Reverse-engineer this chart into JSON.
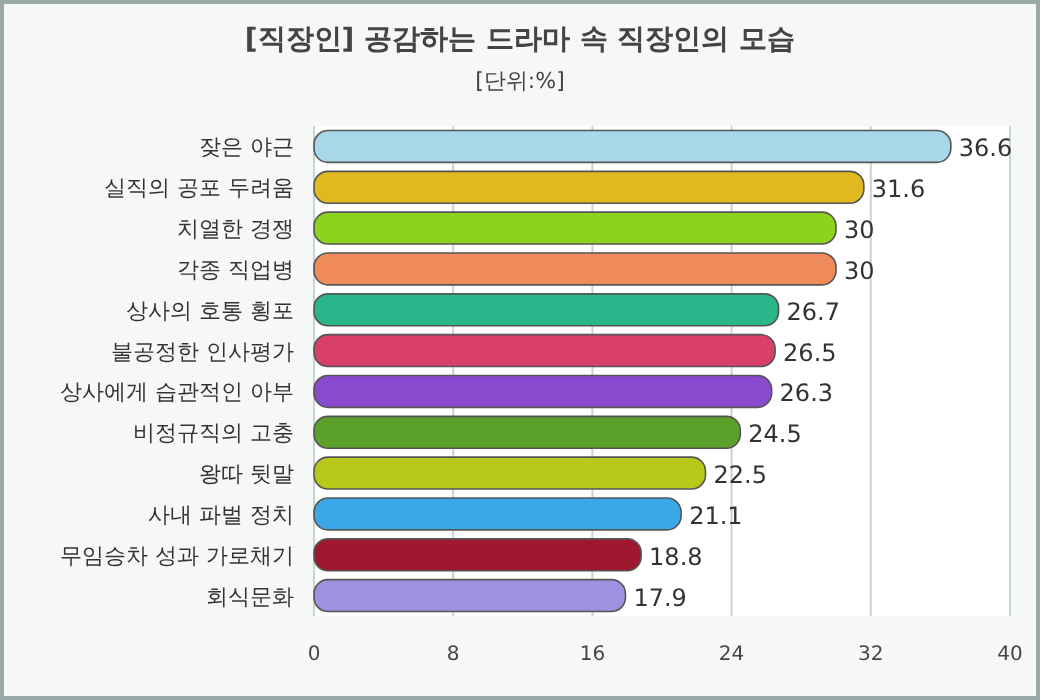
{
  "chart_data": {
    "type": "bar",
    "orientation": "horizontal",
    "title": "[직장인] 공감하는 드라마 속 직장인의 모습",
    "subtitle": "[단위:%]",
    "categories": [
      "잦은 야근",
      "실직의 공포 두려움",
      "치열한 경쟁",
      "각종 직업병",
      "상사의 호통 횡포",
      "불공정한 인사평가",
      "상사에게 습관적인 아부",
      "비정규직의 고충",
      "왕따 뒷말",
      "사내 파벌 정치",
      "무임승차 성과 가로채기",
      "회식문화"
    ],
    "values": [
      36.6,
      31.6,
      30,
      30,
      26.7,
      26.5,
      26.3,
      24.5,
      22.5,
      21.1,
      18.8,
      17.9
    ],
    "colors": [
      "#a8d8ea",
      "#e0b820",
      "#8cd41c",
      "#f08c5c",
      "#2ab58a",
      "#d8406a",
      "#8a4ad0",
      "#5aa02a",
      "#b8c818",
      "#3aa8e8",
      "#a01830",
      "#a090e0"
    ],
    "xlim": [
      0,
      40
    ],
    "xticks": [
      0,
      8,
      16,
      24,
      32,
      40
    ],
    "grid": "x",
    "data_labels": true
  }
}
